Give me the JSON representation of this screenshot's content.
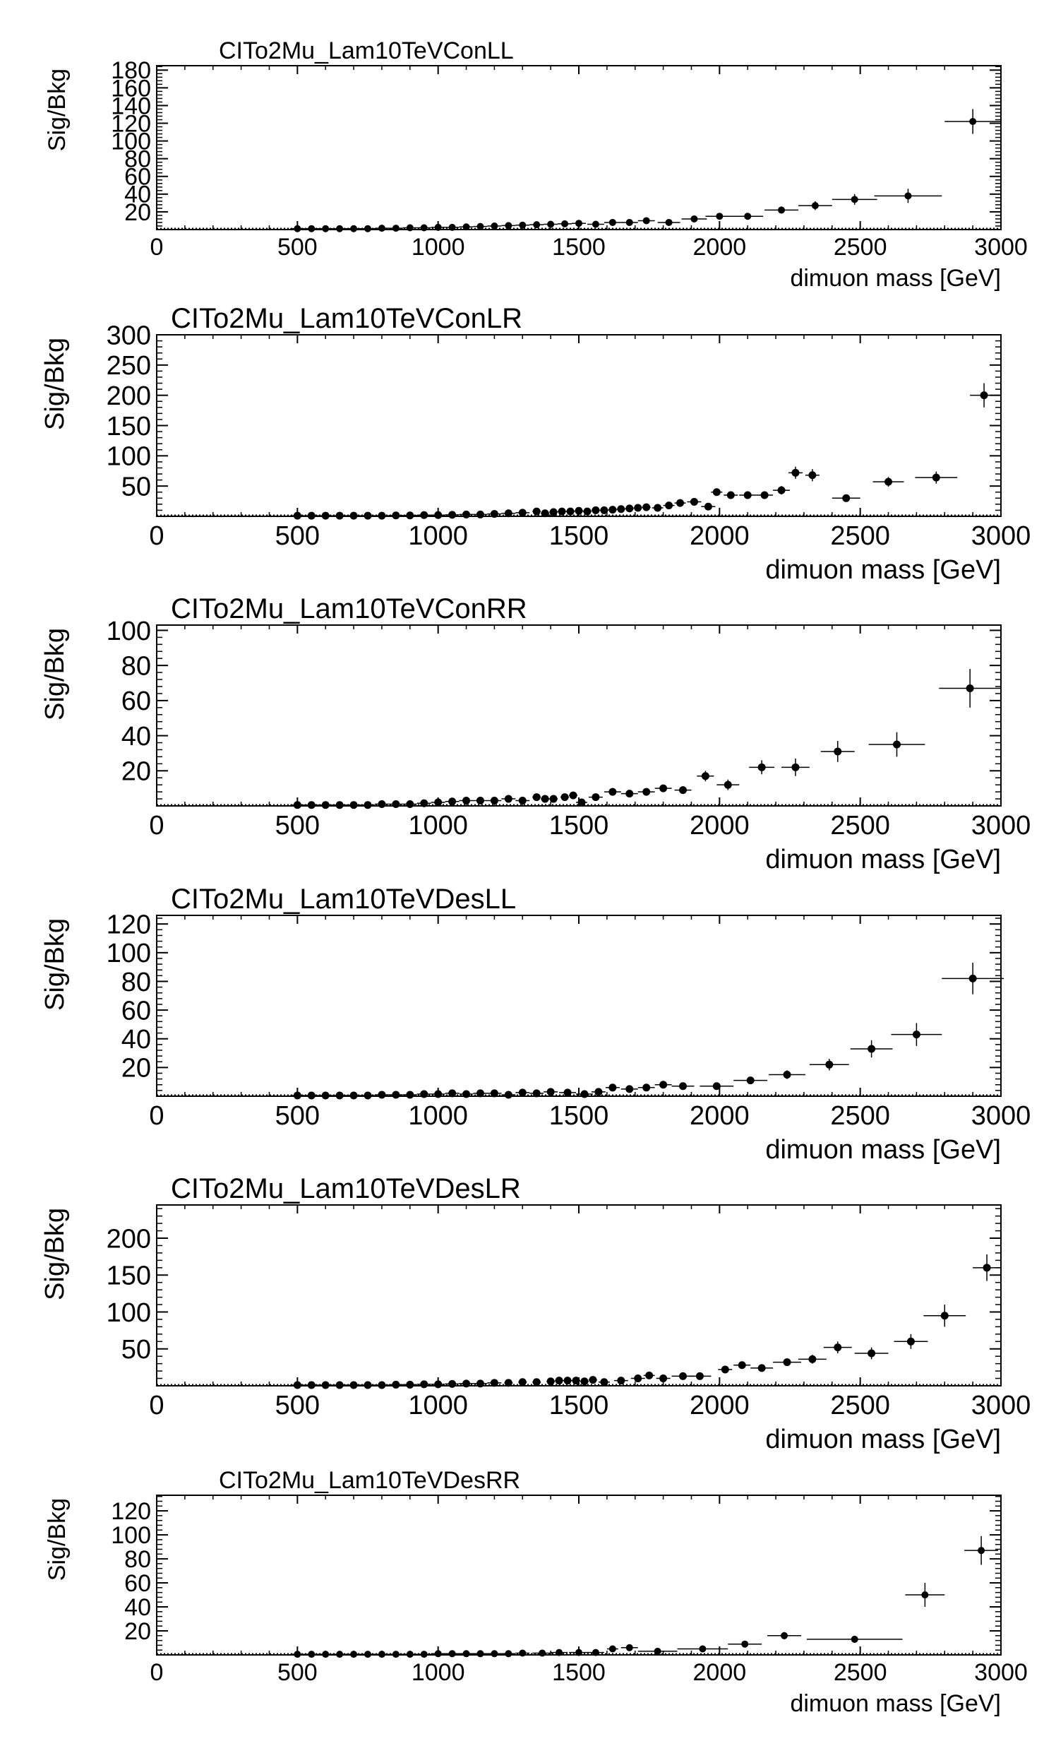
{
  "colors": {
    "background": "#ffffff",
    "axis": "#000000",
    "markers": "#000000"
  },
  "chart_data": [
    {
      "type": "scatter",
      "title": "CITo2Mu_Lam10TeVConLL",
      "xlabel": "dimuon mass [GeV]",
      "ylabel": "Sig/Bkg",
      "xlim": [
        0,
        3000
      ],
      "ylim": [
        0,
        185
      ],
      "x_ticks": [
        "0",
        "500",
        "1000",
        "1500",
        "2000",
        "2500",
        "3000"
      ],
      "y_ticks": [
        "20",
        "40",
        "60",
        "80",
        "100",
        "120",
        "140",
        "160",
        "180"
      ],
      "error_bars": true,
      "baseline": 0,
      "series": [
        {
          "x": [
            500,
            550,
            600,
            650,
            700,
            750,
            800,
            850,
            900,
            950,
            1000,
            1050,
            1100,
            1150,
            1200,
            1250,
            1300,
            1350,
            1400,
            1450,
            1500,
            1560,
            1620,
            1680,
            1740,
            1820,
            1910,
            2000,
            2100,
            2220,
            2340,
            2480,
            2670,
            2900
          ],
          "y": [
            1,
            1,
            1,
            1,
            1,
            1,
            1.5,
            1.5,
            2,
            2,
            2.5,
            2.5,
            3,
            3.5,
            4,
            4.5,
            5,
            5.5,
            6,
            6.5,
            7,
            6,
            8,
            8,
            10,
            8,
            12,
            15,
            15,
            22,
            27,
            34,
            38,
            122
          ],
          "xerr": [
            25,
            25,
            25,
            25,
            25,
            25,
            25,
            25,
            25,
            25,
            25,
            25,
            25,
            25,
            25,
            25,
            25,
            25,
            25,
            25,
            25,
            30,
            30,
            30,
            30,
            40,
            45,
            50,
            55,
            60,
            60,
            80,
            120,
            100
          ],
          "yerr": [
            0,
            0,
            0,
            0,
            0,
            0,
            0,
            0,
            0,
            0,
            0,
            0,
            0,
            0,
            0,
            0,
            0,
            0,
            0,
            0,
            1.5,
            1.5,
            1.5,
            1.5,
            2,
            2,
            3,
            3,
            3,
            4,
            5,
            6,
            8,
            14
          ]
        }
      ]
    },
    {
      "type": "scatter",
      "title": "CITo2Mu_Lam10TeVConLR",
      "xlabel": "dimuon mass [GeV]",
      "ylabel": "Sig/Bkg",
      "xlim": [
        0,
        3000
      ],
      "ylim": [
        0,
        300
      ],
      "x_ticks": [
        "0",
        "500",
        "1000",
        "1500",
        "2000",
        "2500",
        "3000"
      ],
      "y_ticks": [
        "50",
        "100",
        "150",
        "200",
        "250",
        "300"
      ],
      "error_bars": true,
      "baseline": 0,
      "series": [
        {
          "x": [
            500,
            550,
            600,
            650,
            700,
            750,
            800,
            850,
            900,
            950,
            1000,
            1050,
            1100,
            1150,
            1200,
            1250,
            1300,
            1350,
            1380,
            1410,
            1440,
            1470,
            1500,
            1530,
            1560,
            1590,
            1620,
            1650,
            1680,
            1710,
            1740,
            1780,
            1820,
            1860,
            1910,
            1960,
            1990,
            2040,
            2100,
            2160,
            2220,
            2270,
            2330,
            2450,
            2600,
            2770,
            2940
          ],
          "y": [
            1,
            1,
            1,
            1,
            1,
            1,
            1,
            1.5,
            1.5,
            2,
            2,
            2.5,
            3,
            3,
            4,
            5,
            6,
            8,
            5,
            7,
            8,
            8,
            9,
            8,
            10,
            10,
            11,
            12,
            13,
            14,
            15,
            14,
            18,
            22,
            24,
            16,
            40,
            35,
            35,
            35,
            43,
            72,
            68,
            30,
            57,
            64,
            200
          ],
          "xerr": [
            25,
            25,
            25,
            25,
            25,
            25,
            25,
            25,
            25,
            25,
            25,
            25,
            25,
            25,
            25,
            25,
            25,
            15,
            15,
            15,
            15,
            15,
            15,
            15,
            15,
            15,
            15,
            15,
            15,
            15,
            15,
            20,
            20,
            20,
            25,
            25,
            20,
            25,
            30,
            30,
            30,
            25,
            25,
            50,
            55,
            75,
            50
          ],
          "yerr": [
            0,
            0,
            0,
            0,
            0,
            0,
            0,
            0,
            0,
            0,
            0,
            0,
            0,
            0,
            0,
            0,
            0,
            0,
            0,
            0,
            0,
            0,
            0,
            0,
            0,
            0,
            0,
            0,
            0,
            0,
            0,
            0,
            2,
            3,
            3,
            3,
            6,
            5,
            5,
            6,
            7,
            10,
            10,
            6,
            8,
            10,
            20
          ]
        }
      ]
    },
    {
      "type": "scatter",
      "title": "CITo2Mu_Lam10TeVConRR",
      "xlabel": "dimuon mass [GeV]",
      "ylabel": "Sig/Bkg",
      "xlim": [
        0,
        3000
      ],
      "ylim": [
        0,
        103
      ],
      "x_ticks": [
        "0",
        "500",
        "1000",
        "1500",
        "2000",
        "2500",
        "3000"
      ],
      "y_ticks": [
        "20",
        "40",
        "60",
        "80",
        "100"
      ],
      "error_bars": true,
      "baseline": 0,
      "series": [
        {
          "x": [
            500,
            550,
            600,
            650,
            700,
            750,
            800,
            850,
            900,
            950,
            1000,
            1050,
            1100,
            1150,
            1200,
            1250,
            1300,
            1350,
            1380,
            1410,
            1450,
            1480,
            1510,
            1560,
            1620,
            1680,
            1740,
            1800,
            1870,
            1950,
            2030,
            2150,
            2270,
            2420,
            2630,
            2890
          ],
          "y": [
            0.5,
            0.5,
            0.5,
            0.5,
            0.5,
            0.5,
            1,
            1,
            1,
            1.5,
            2,
            2.5,
            3,
            3,
            3,
            4,
            3,
            5,
            4,
            4,
            5,
            6,
            2,
            5,
            8,
            7,
            8,
            10,
            9,
            17,
            12,
            22,
            22,
            31,
            35,
            67
          ],
          "xerr": [
            25,
            25,
            25,
            25,
            25,
            25,
            25,
            25,
            25,
            25,
            25,
            25,
            25,
            25,
            25,
            25,
            25,
            15,
            15,
            15,
            15,
            15,
            20,
            25,
            30,
            30,
            30,
            30,
            30,
            30,
            40,
            45,
            50,
            60,
            100,
            110
          ],
          "yerr": [
            0,
            0,
            0,
            0,
            0,
            0,
            0,
            0,
            0,
            0,
            0,
            0,
            0,
            0,
            0,
            0,
            0,
            0,
            0,
            0,
            0,
            0,
            0,
            0,
            1.5,
            1.5,
            1.5,
            2,
            2,
            3,
            3,
            4,
            5,
            6,
            7,
            11
          ]
        }
      ]
    },
    {
      "type": "scatter",
      "title": "CITo2Mu_Lam10TeVDesLL",
      "xlabel": "dimuon mass [GeV]",
      "ylabel": "Sig/Bkg",
      "xlim": [
        0,
        3000
      ],
      "ylim": [
        0,
        126
      ],
      "x_ticks": [
        "0",
        "500",
        "1000",
        "1500",
        "2000",
        "2500",
        "3000"
      ],
      "y_ticks": [
        "20",
        "40",
        "60",
        "80",
        "100",
        "120"
      ],
      "error_bars": true,
      "baseline": 0,
      "series": [
        {
          "x": [
            500,
            550,
            600,
            650,
            700,
            750,
            800,
            850,
            900,
            950,
            1000,
            1050,
            1100,
            1150,
            1200,
            1250,
            1300,
            1350,
            1400,
            1460,
            1520,
            1570,
            1620,
            1680,
            1740,
            1800,
            1870,
            1990,
            2110,
            2240,
            2390,
            2540,
            2700,
            2900
          ],
          "y": [
            0.5,
            0.5,
            0.5,
            0.5,
            0.5,
            0.5,
            1,
            1,
            1,
            1.5,
            1.5,
            2,
            1.5,
            2,
            2,
            1,
            2.5,
            2,
            3,
            2.5,
            1.5,
            3,
            6,
            5,
            6,
            8,
            7,
            7,
            11,
            15,
            22,
            33,
            43,
            82
          ],
          "xerr": [
            25,
            25,
            25,
            25,
            25,
            25,
            25,
            25,
            25,
            25,
            25,
            25,
            25,
            25,
            25,
            25,
            25,
            25,
            25,
            30,
            30,
            25,
            25,
            30,
            30,
            30,
            40,
            60,
            60,
            65,
            70,
            75,
            90,
            110
          ],
          "yerr": [
            0,
            0,
            0,
            0,
            0,
            0,
            0,
            0,
            0,
            0,
            0,
            0,
            0,
            0,
            0,
            0,
            0,
            0,
            0,
            0,
            0,
            0,
            1.5,
            1.5,
            1.5,
            2,
            2,
            2,
            2.5,
            3,
            4,
            6,
            8,
            11
          ]
        }
      ]
    },
    {
      "type": "scatter",
      "title": "CITo2Mu_Lam10TeVDesLR",
      "xlabel": "dimuon mass [GeV]",
      "ylabel": "Sig/Bkg",
      "xlim": [
        0,
        3000
      ],
      "ylim": [
        0,
        245
      ],
      "x_ticks": [
        "0",
        "500",
        "1000",
        "1500",
        "2000",
        "2500",
        "3000"
      ],
      "y_ticks": [
        "50",
        "100",
        "150",
        "200"
      ],
      "error_bars": true,
      "baseline": 0,
      "series": [
        {
          "x": [
            500,
            550,
            600,
            650,
            700,
            750,
            800,
            850,
            900,
            950,
            1000,
            1050,
            1100,
            1150,
            1200,
            1250,
            1300,
            1350,
            1400,
            1430,
            1460,
            1490,
            1520,
            1550,
            1590,
            1650,
            1710,
            1750,
            1800,
            1870,
            1930,
            2020,
            2080,
            2150,
            2240,
            2330,
            2420,
            2540,
            2680,
            2800,
            2950
          ],
          "y": [
            1,
            1,
            1,
            1,
            1,
            1,
            1,
            1.5,
            1.5,
            2,
            2,
            2.5,
            3,
            3,
            4,
            4,
            5,
            5,
            6,
            7,
            7,
            7,
            6,
            8,
            5,
            7,
            10,
            14,
            10,
            13,
            13,
            22,
            28,
            24,
            32,
            36,
            52,
            44,
            60,
            95,
            160
          ],
          "xerr": [
            25,
            25,
            25,
            25,
            25,
            25,
            25,
            25,
            25,
            25,
            25,
            25,
            25,
            25,
            25,
            15,
            15,
            15,
            15,
            15,
            15,
            15,
            15,
            15,
            20,
            25,
            25,
            20,
            25,
            40,
            40,
            25,
            30,
            40,
            50,
            50,
            50,
            60,
            60,
            75,
            50
          ],
          "yerr": [
            0,
            0,
            0,
            0,
            0,
            0,
            0,
            0,
            0,
            0,
            0,
            0,
            0,
            0,
            0,
            0,
            0,
            0,
            0,
            0,
            0,
            0,
            0,
            0,
            0,
            0,
            2,
            2,
            2,
            2,
            3,
            3,
            4,
            4,
            5,
            6,
            8,
            8,
            10,
            15,
            18
          ]
        }
      ]
    },
    {
      "type": "scatter",
      "title": "CITo2Mu_Lam10TeVDesRR",
      "xlabel": "dimuon mass [GeV]",
      "ylabel": "Sig/Bkg",
      "xlim": [
        0,
        3000
      ],
      "ylim": [
        0,
        133
      ],
      "x_ticks": [
        "0",
        "500",
        "1000",
        "1500",
        "2000",
        "2500",
        "3000"
      ],
      "y_ticks": [
        "20",
        "40",
        "60",
        "80",
        "100",
        "120"
      ],
      "error_bars": true,
      "baseline": 0,
      "series": [
        {
          "x": [
            500,
            550,
            600,
            650,
            700,
            750,
            800,
            850,
            900,
            950,
            1000,
            1050,
            1100,
            1150,
            1200,
            1250,
            1300,
            1370,
            1430,
            1500,
            1560,
            1620,
            1680,
            1780,
            1940,
            2090,
            2230,
            2480,
            2730,
            2930
          ],
          "y": [
            0.5,
            0.5,
            0.5,
            0.5,
            0.5,
            0.5,
            0.5,
            0.5,
            0.5,
            0.5,
            1,
            1,
            1,
            1,
            1,
            1,
            1.5,
            1.5,
            2,
            2,
            2,
            5,
            6,
            3,
            5,
            9,
            16,
            13,
            50,
            87
          ],
          "xerr": [
            25,
            25,
            25,
            25,
            25,
            25,
            25,
            25,
            25,
            25,
            25,
            25,
            25,
            25,
            25,
            25,
            25,
            35,
            30,
            35,
            30,
            20,
            30,
            70,
            90,
            60,
            60,
            170,
            70,
            60
          ],
          "yerr": [
            0,
            0,
            0,
            0,
            0,
            0,
            0,
            0,
            0,
            0,
            0,
            0,
            0,
            0,
            0,
            0,
            0,
            0,
            0,
            0,
            0,
            1.5,
            1.5,
            1.5,
            2,
            2.5,
            3,
            3,
            10,
            12
          ]
        }
      ]
    }
  ]
}
